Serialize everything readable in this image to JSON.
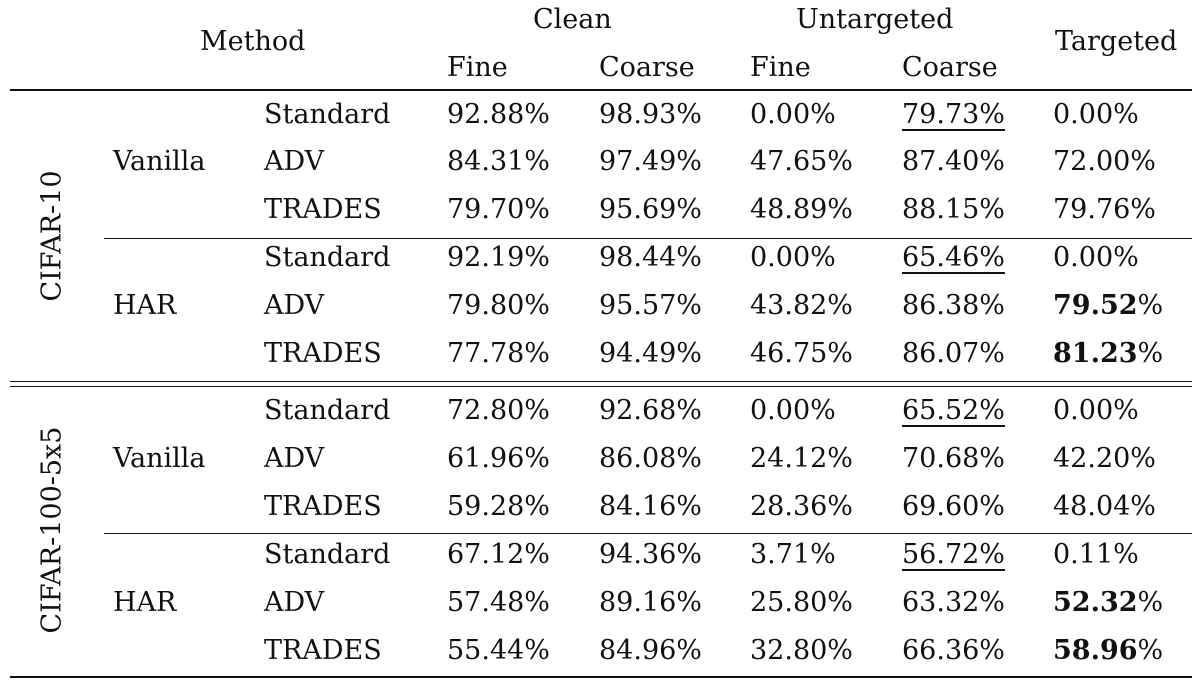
{
  "header": {
    "method": "Method",
    "clean": "Clean",
    "untargeted": "Untargeted",
    "targeted": "Targeted",
    "fine": "Fine",
    "coarse": "Coarse"
  },
  "datasets": [
    {
      "name": "CIFAR-10",
      "groups": [
        {
          "model": "Vanilla",
          "rows": [
            {
              "method": "Standard",
              "values": [
                "92.88%",
                "98.93%",
                "0.00%",
                "79.73%",
                "0.00%"
              ],
              "underline": [
                3
              ],
              "bold": []
            },
            {
              "method": "ADV",
              "values": [
                "84.31%",
                "97.49%",
                "47.65%",
                "87.40%",
                "72.00%"
              ],
              "underline": [],
              "bold": []
            },
            {
              "method": "TRADES",
              "values": [
                "79.70%",
                "95.69%",
                "48.89%",
                "88.15%",
                "79.76%"
              ],
              "underline": [],
              "bold": []
            }
          ]
        },
        {
          "model": "HAR",
          "rows": [
            {
              "method": "Standard",
              "values": [
                "92.19%",
                "98.44%",
                "0.00%",
                "65.46%",
                "0.00%"
              ],
              "underline": [
                3
              ],
              "bold": []
            },
            {
              "method": "ADV",
              "values": [
                "79.80%",
                "95.57%",
                "43.82%",
                "86.38%",
                "79.52%"
              ],
              "underline": [],
              "bold": [
                4
              ]
            },
            {
              "method": "TRADES",
              "values": [
                "77.78%",
                "94.49%",
                "46.75%",
                "86.07%",
                "81.23%"
              ],
              "underline": [],
              "bold": [
                4
              ]
            }
          ]
        }
      ]
    },
    {
      "name": "CIFAR-100-5x5",
      "groups": [
        {
          "model": "Vanilla",
          "rows": [
            {
              "method": "Standard",
              "values": [
                "72.80%",
                "92.68%",
                "0.00%",
                "65.52%",
                "0.00%"
              ],
              "underline": [
                3
              ],
              "bold": []
            },
            {
              "method": "ADV",
              "values": [
                "61.96%",
                "86.08%",
                "24.12%",
                "70.68%",
                "42.20%"
              ],
              "underline": [],
              "bold": []
            },
            {
              "method": "TRADES",
              "values": [
                "59.28%",
                "84.16%",
                "28.36%",
                "69.60%",
                "48.04%"
              ],
              "underline": [],
              "bold": []
            }
          ]
        },
        {
          "model": "HAR",
          "rows": [
            {
              "method": "Standard",
              "values": [
                "67.12%",
                "94.36%",
                "3.71%",
                "56.72%",
                "0.11%"
              ],
              "underline": [
                3
              ],
              "bold": []
            },
            {
              "method": "ADV",
              "values": [
                "57.48%",
                "89.16%",
                "25.80%",
                "63.32%",
                "52.32%"
              ],
              "underline": [],
              "bold": [
                4
              ]
            },
            {
              "method": "TRADES",
              "values": [
                "55.44%",
                "84.96%",
                "32.80%",
                "66.36%",
                "58.96%"
              ],
              "underline": [],
              "bold": [
                4
              ]
            }
          ]
        }
      ]
    }
  ]
}
